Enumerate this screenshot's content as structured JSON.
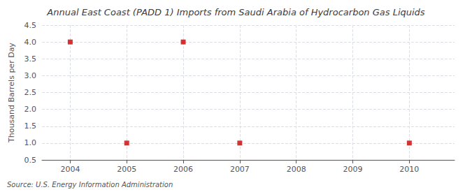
{
  "chart_data": {
    "type": "scatter",
    "title": "Annual East Coast (PADD 1) Imports from Saudi Arabia of Hydrocarbon Gas Liquids",
    "ylabel": "Thousand Barrels per Day",
    "source": "Source: U.S. Energy Information Administration",
    "x": [
      2004,
      2005,
      2006,
      2007,
      2010
    ],
    "values": [
      4.0,
      1.0,
      4.0,
      1.0,
      1.0
    ],
    "color": "#cc0000",
    "marker": "square",
    "xlim": [
      2003.5,
      2010.8
    ],
    "xticks": [
      2004,
      2005,
      2006,
      2007,
      2008,
      2009,
      2010
    ],
    "ylim": [
      0.5,
      4.5
    ],
    "yticks": [
      0.5,
      {
        "value": 1.0,
        "label": "1.0"
      },
      1.5,
      {
        "value": 2.0,
        "label": "2.0"
      },
      2.5,
      {
        "value": 3.0,
        "label": "3.0"
      },
      3.5,
      {
        "value": 4.0,
        "label": "4.0"
      },
      4.5
    ],
    "grid": true
  }
}
